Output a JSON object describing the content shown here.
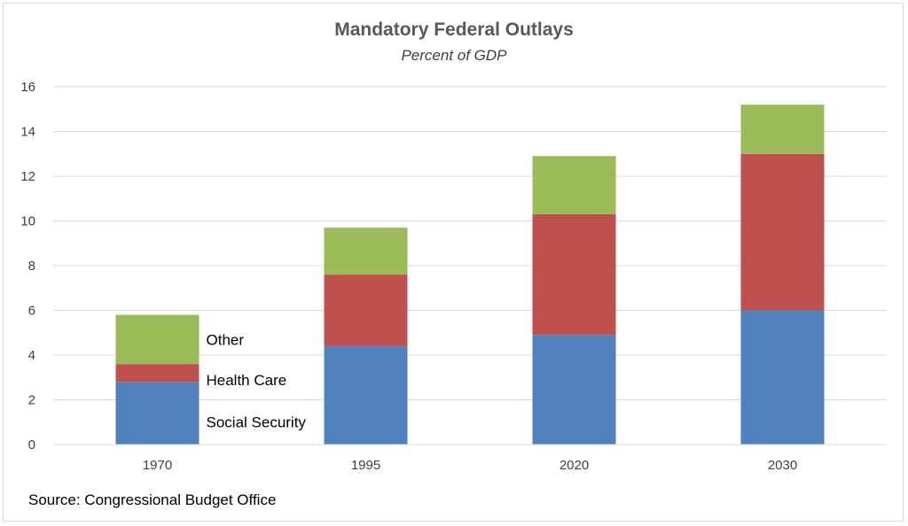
{
  "chart_data": {
    "type": "bar",
    "stacked": true,
    "title": "Mandatory Federal Outlays",
    "subtitle": "Percent of GDP",
    "categories": [
      "1970",
      "1995",
      "2020",
      "2030"
    ],
    "series": [
      {
        "name": "Social Security",
        "color": "#4f81bd",
        "values": [
          2.8,
          4.4,
          4.9,
          6.0
        ]
      },
      {
        "name": "Health Care",
        "color": "#c0504d",
        "values": [
          0.8,
          3.2,
          5.4,
          7.0
        ]
      },
      {
        "name": "Other",
        "color": "#9bbb59",
        "values": [
          2.2,
          2.1,
          2.6,
          2.2
        ]
      }
    ],
    "ylim": [
      0,
      16
    ],
    "yticks": [
      0,
      2,
      4,
      6,
      8,
      10,
      12,
      14,
      16
    ],
    "grid": true,
    "legend": "inline labels beside first bar",
    "source": "Source: Congressional Budget Office"
  }
}
